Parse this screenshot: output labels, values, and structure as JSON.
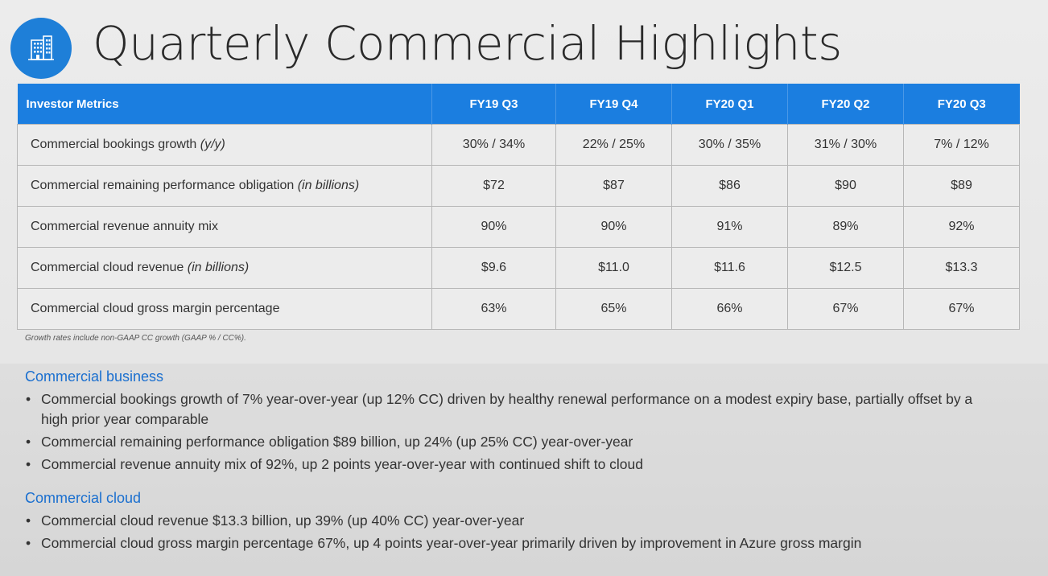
{
  "title": "Quarterly Commercial Highlights",
  "logo_icon": "office-building-icon",
  "colors": {
    "header_blue": "#1b7ee0",
    "heading_blue": "#1a6fcf",
    "logo_blue": "#1e7fd8"
  },
  "table": {
    "header": [
      "Investor Metrics",
      "FY19 Q3",
      "FY19 Q4",
      "FY20 Q1",
      "FY20 Q2",
      "FY20 Q3"
    ],
    "rows": [
      {
        "label": "Commercial bookings growth ",
        "qualifier": "(y/y)",
        "values": [
          "30% / 34%",
          "22% / 25%",
          "30% / 35%",
          "31% / 30%",
          "7% / 12%"
        ]
      },
      {
        "label": "Commercial remaining performance obligation ",
        "qualifier": "(in billions)",
        "values": [
          "$72",
          "$87",
          "$86",
          "$90",
          "$89"
        ]
      },
      {
        "label": "Commercial revenue annuity mix",
        "qualifier": "",
        "values": [
          "90%",
          "90%",
          "91%",
          "89%",
          "92%"
        ]
      },
      {
        "label": "Commercial cloud revenue ",
        "qualifier": "(in billions)",
        "values": [
          "$9.6",
          "$11.0",
          "$11.6",
          "$12.5",
          "$13.3"
        ]
      },
      {
        "label": "Commercial cloud gross margin percentage",
        "qualifier": "",
        "values": [
          "63%",
          "65%",
          "66%",
          "67%",
          "67%"
        ]
      }
    ]
  },
  "footnote": "Growth rates include non-GAAP CC growth (GAAP % / CC%).",
  "sections": [
    {
      "heading": "Commercial business",
      "bullets": [
        "Commercial bookings growth of 7% year-over-year (up 12% CC) driven by healthy renewal performance on a modest expiry base, partially offset by a high prior year comparable",
        "Commercial remaining performance obligation $89 billion, up 24% (up 25% CC) year-over-year",
        "Commercial revenue annuity mix of 92%, up 2 points year-over-year with continued shift to cloud"
      ]
    },
    {
      "heading": "Commercial cloud",
      "bullets": [
        "Commercial cloud revenue $13.3 billion, up 39% (up 40% CC) year-over-year",
        "Commercial cloud gross margin percentage 67%, up 4 points year-over-year primarily driven by improvement in Azure gross margin"
      ]
    }
  ]
}
